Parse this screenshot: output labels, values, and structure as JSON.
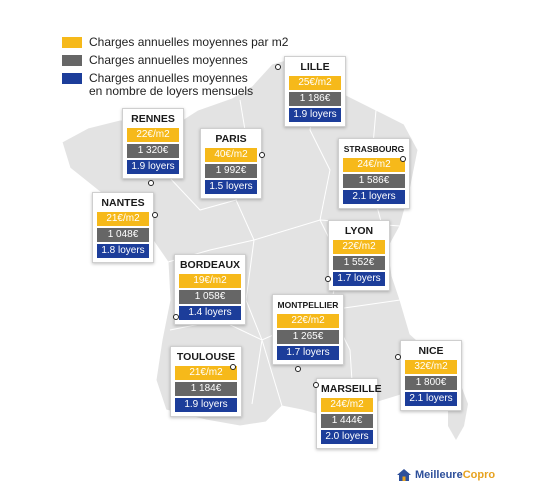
{
  "legend": {
    "items": [
      {
        "label": "Charges annuelles moyennes par m2",
        "color": "#f6b91a"
      },
      {
        "label": "Charges annuelles moyennes",
        "color": "#666666"
      },
      {
        "label": "Charges annuelles moyennes\nen nombre de loyers mensuels",
        "color": "#1c3d9a"
      }
    ]
  },
  "colors": {
    "per_m2": "#f6b91a",
    "annual": "#666666",
    "rents": "#1c3d9a",
    "land": "#e3e3e3"
  },
  "cities": [
    {
      "name": "LILLE",
      "per_m2": "25€/m2",
      "annual": "1 186€",
      "rents": "1.9 loyers"
    },
    {
      "name": "RENNES",
      "per_m2": "22€/m2",
      "annual": "1 320€",
      "rents": "1.9 loyers"
    },
    {
      "name": "PARIS",
      "per_m2": "40€/m2",
      "annual": "1 992€",
      "rents": "1.5 loyers"
    },
    {
      "name": "STRASBOURG",
      "per_m2": "24€/m2",
      "annual": "1 586€",
      "rents": "2.1 loyers"
    },
    {
      "name": "NANTES",
      "per_m2": "21€/m2",
      "annual": "1 048€",
      "rents": "1.8 loyers"
    },
    {
      "name": "LYON",
      "per_m2": "22€/m2",
      "annual": "1 552€",
      "rents": "1.7 loyers"
    },
    {
      "name": "BORDEAUX",
      "per_m2": "19€/m2",
      "annual": "1 058€",
      "rents": "1.4 loyers"
    },
    {
      "name": "MONTPELLIER",
      "per_m2": "22€/m2",
      "annual": "1 265€",
      "rents": "1.7 loyers"
    },
    {
      "name": "NICE",
      "per_m2": "32€/m2",
      "annual": "1 800€",
      "rents": "2.1 loyers"
    },
    {
      "name": "TOULOUSE",
      "per_m2": "21€/m2",
      "annual": "1 184€",
      "rents": "1.9 loyers"
    },
    {
      "name": "MARSEILLE",
      "per_m2": "24€/m2",
      "annual": "1 444€",
      "rents": "2.0 loyers"
    }
  ],
  "brand": {
    "part1": "Meilleure",
    "part2": "Copro",
    "icon": "house-logo-icon"
  }
}
